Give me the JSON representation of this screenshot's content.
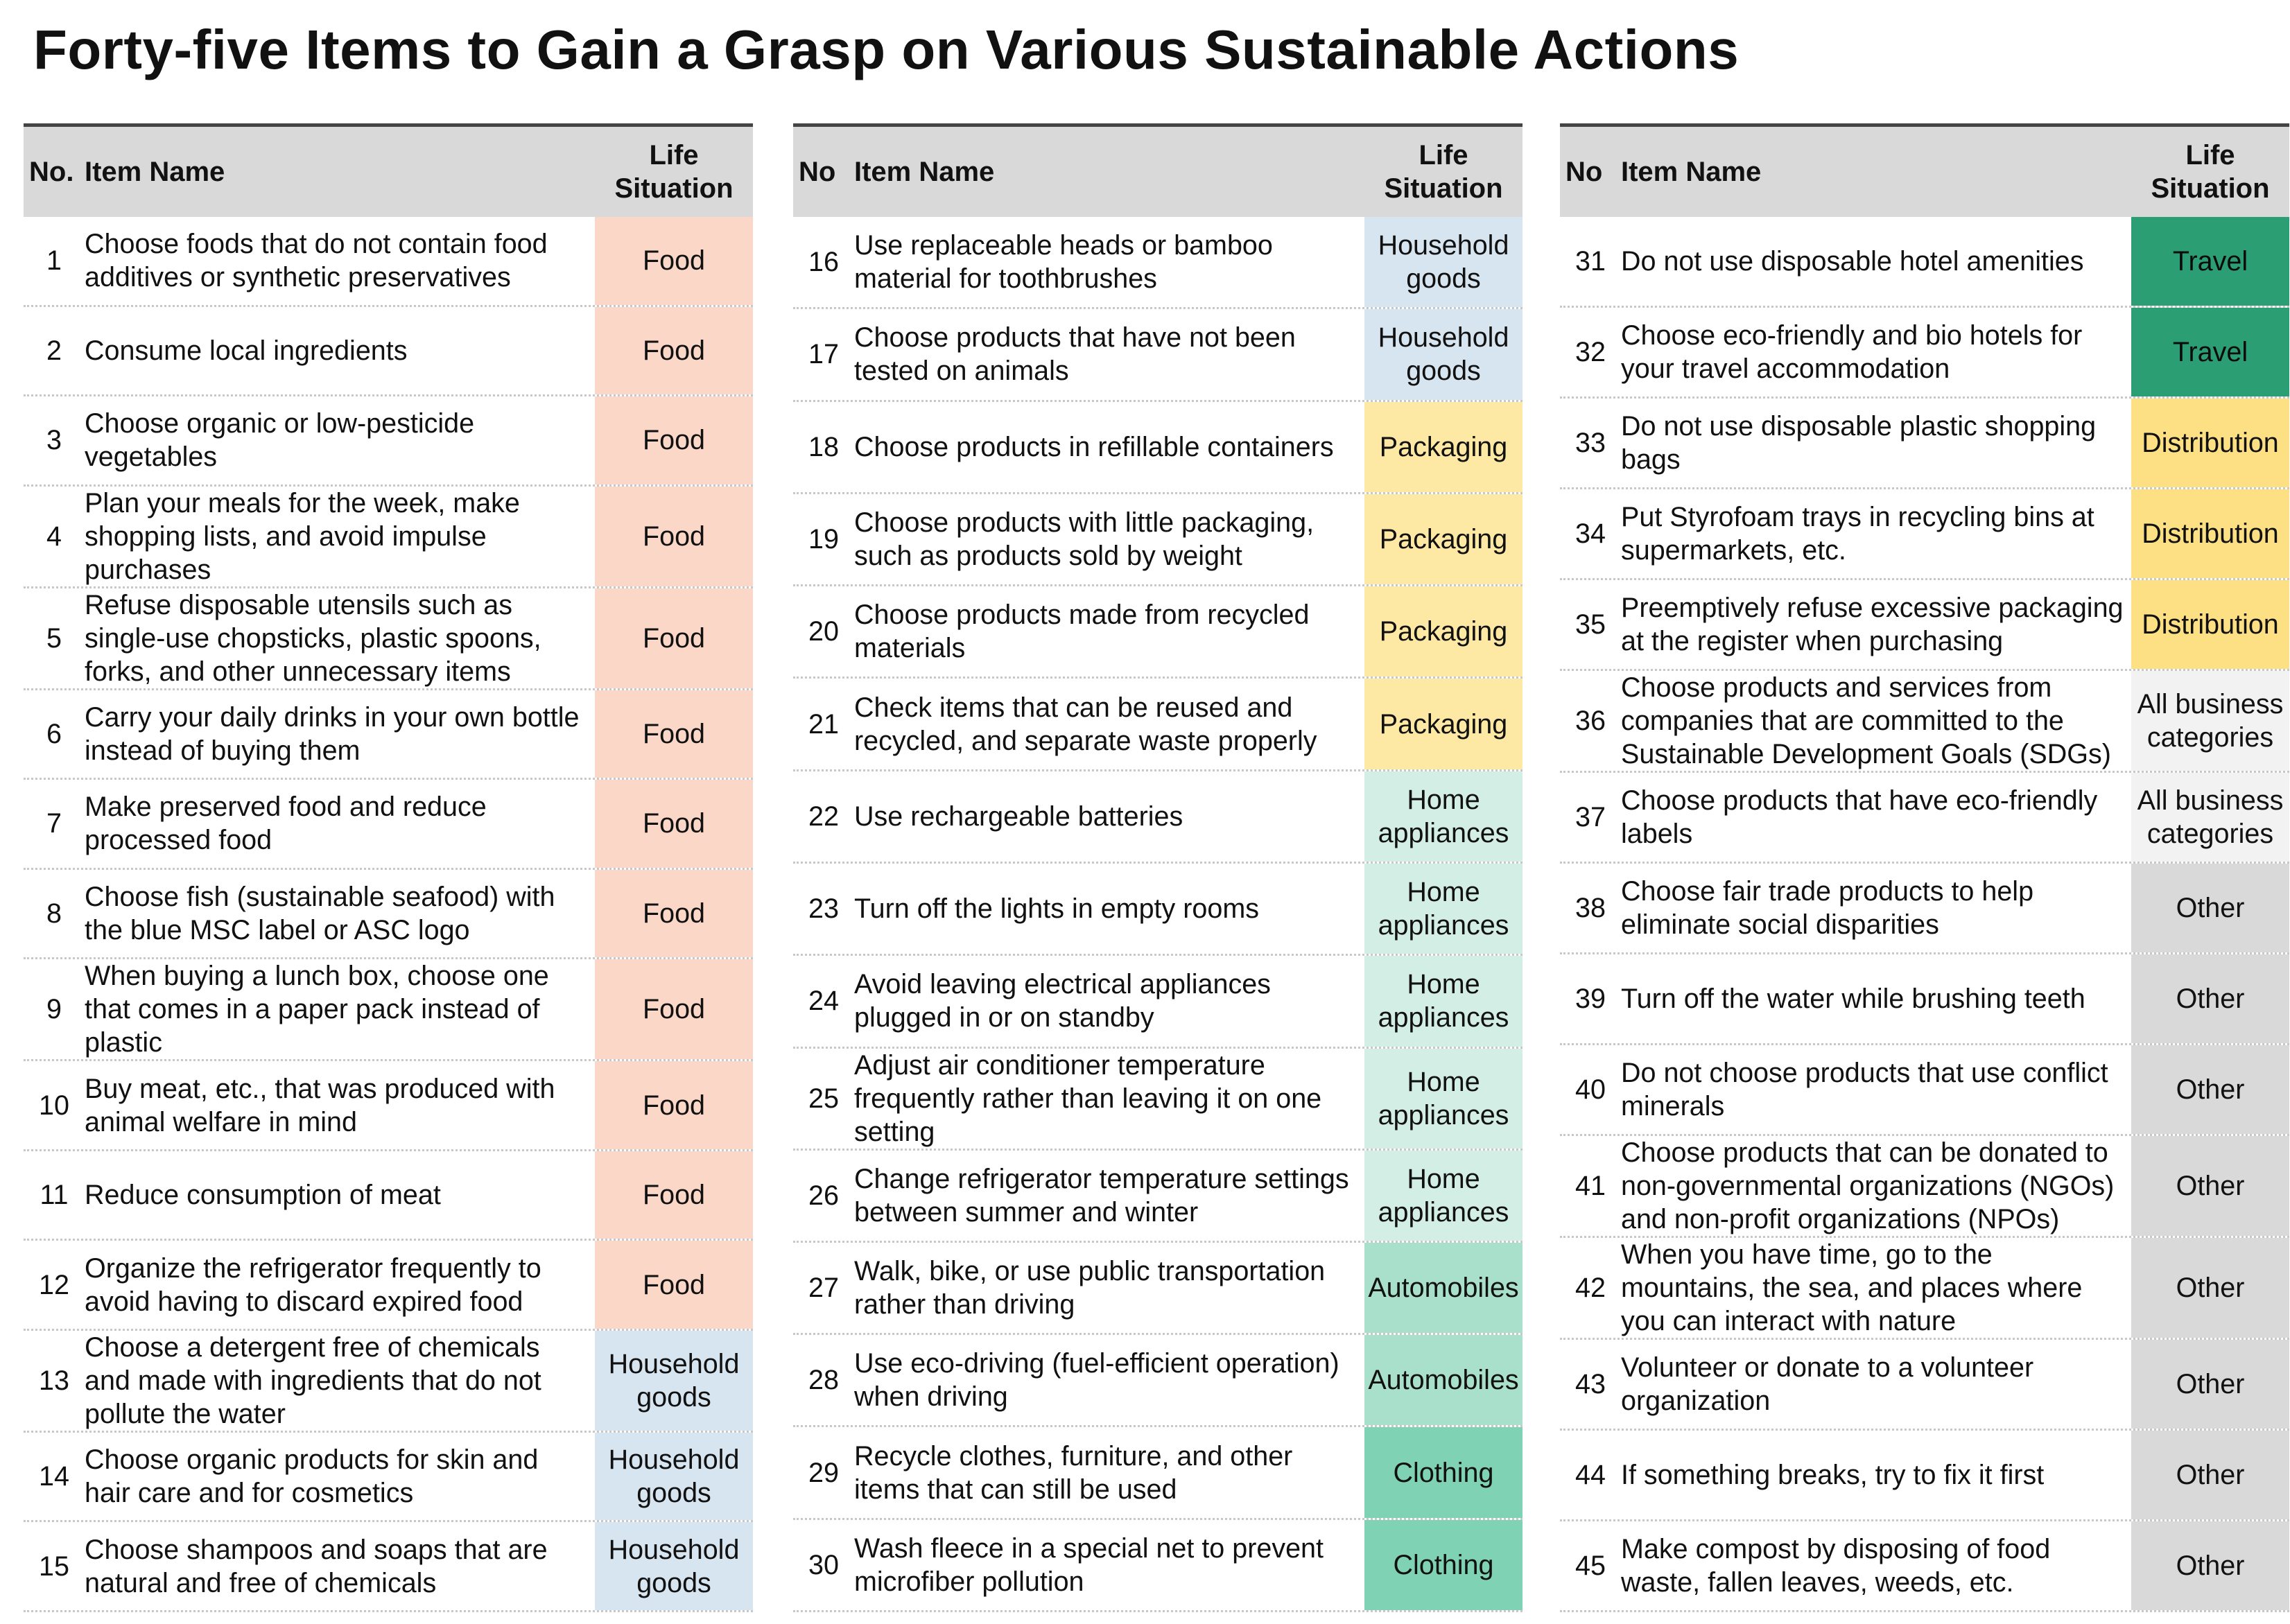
{
  "title": "Forty-five Items to Gain a Grasp on Various Sustainable Actions",
  "category_colors": {
    "Food": "#fad7c6",
    "Household goods": "#d7e5f0",
    "Packaging": "#fde8a4",
    "Home appliances": "#d3efe5",
    "Automobiles": "#a9e0cc",
    "Clothing": "#7fd3b4",
    "Travel": "#2c9e74",
    "Distribution": "#fde083",
    "All business categories": "#f2f2f2",
    "Other": "#d9d9d9"
  },
  "panels": [
    {
      "headers": {
        "no": "No.",
        "item_name": "Item Name",
        "life_situation": "Life Situation"
      },
      "rows": [
        {
          "no": "1",
          "item": "Choose foods that do not contain food additives or synthetic preservatives",
          "situation": "Food"
        },
        {
          "no": "2",
          "item": "Consume local ingredients",
          "situation": "Food"
        },
        {
          "no": "3",
          "item": "Choose organic or low-pesticide vegetables",
          "situation": "Food"
        },
        {
          "no": "4",
          "item": "Plan your meals for the week, make shopping lists, and avoid impulse purchases",
          "situation": "Food"
        },
        {
          "no": "5",
          "item": "Refuse disposable utensils such as single-use chopsticks, plastic spoons, forks, and other unnecessary items",
          "situation": "Food"
        },
        {
          "no": "6",
          "item": "Carry your daily drinks in your own bottle instead of buying them",
          "situation": "Food"
        },
        {
          "no": "7",
          "item": "Make preserved food and reduce processed food",
          "situation": "Food"
        },
        {
          "no": "8",
          "item": "Choose fish (sustainable seafood) with the blue MSC label or ASC logo",
          "situation": "Food"
        },
        {
          "no": "9",
          "item": "When buying a lunch box, choose one that comes in a paper pack instead of plastic",
          "situation": "Food"
        },
        {
          "no": "10",
          "item": "Buy meat, etc., that was produced with animal welfare in mind",
          "situation": "Food"
        },
        {
          "no": "11",
          "item": "Reduce consumption of meat",
          "situation": "Food"
        },
        {
          "no": "12",
          "item": "Organize the refrigerator frequently to avoid having to discard expired food",
          "situation": "Food"
        },
        {
          "no": "13",
          "item": "Choose a detergent free of chemicals and made with ingredients that do not pollute the water",
          "situation": "Household goods"
        },
        {
          "no": "14",
          "item": "Choose organic products for skin and hair care and for cosmetics",
          "situation": "Household goods"
        },
        {
          "no": "15",
          "item": "Choose shampoos and soaps that are natural and free of chemicals",
          "situation": "Household goods"
        }
      ]
    },
    {
      "headers": {
        "no": "No",
        "item_name": "Item Name",
        "life_situation": "Life Situation"
      },
      "rows": [
        {
          "no": "16",
          "item": "Use replaceable heads or bamboo material for toothbrushes",
          "situation": "Household goods"
        },
        {
          "no": "17",
          "item": "Choose products that have not been tested on animals",
          "situation": "Household goods"
        },
        {
          "no": "18",
          "item": "Choose products in refillable containers",
          "situation": "Packaging"
        },
        {
          "no": "19",
          "item": "Choose products with little packaging, such as products sold by weight",
          "situation": "Packaging"
        },
        {
          "no": "20",
          "item": "Choose products made from recycled materials",
          "situation": "Packaging"
        },
        {
          "no": "21",
          "item": "Check items that can be reused and recycled, and separate waste properly",
          "situation": "Packaging"
        },
        {
          "no": "22",
          "item": "Use rechargeable batteries",
          "situation": "Home appliances"
        },
        {
          "no": "23",
          "item": "Turn off the lights in empty rooms",
          "situation": "Home appliances"
        },
        {
          "no": "24",
          "item": "Avoid leaving electrical appliances plugged in or on standby",
          "situation": "Home appliances"
        },
        {
          "no": "25",
          "item": "Adjust air conditioner temperature frequently rather than leaving it on one setting",
          "situation": "Home appliances"
        },
        {
          "no": "26",
          "item": "Change refrigerator temperature settings between summer and winter",
          "situation": "Home appliances"
        },
        {
          "no": "27",
          "item": "Walk, bike, or use public transportation rather than driving",
          "situation": "Automobiles"
        },
        {
          "no": "28",
          "item": "Use eco-driving (fuel-efficient operation) when driving",
          "situation": "Automobiles"
        },
        {
          "no": "29",
          "item": "Recycle clothes, furniture, and other items that can still be used",
          "situation": "Clothing"
        },
        {
          "no": "30",
          "item": "Wash fleece in a special net to prevent microfiber pollution",
          "situation": "Clothing"
        }
      ]
    },
    {
      "headers": {
        "no": "No",
        "item_name": "Item Name",
        "life_situation": "Life Situation"
      },
      "rows": [
        {
          "no": "31",
          "item": "Do not use disposable hotel amenities",
          "situation": "Travel"
        },
        {
          "no": "32",
          "item": "Choose eco-friendly and bio hotels for your travel accommodation",
          "situation": "Travel"
        },
        {
          "no": "33",
          "item": "Do not use disposable plastic shopping bags",
          "situation": "Distribution"
        },
        {
          "no": "34",
          "item": "Put Styrofoam trays in recycling bins at supermarkets, etc.",
          "situation": "Distribution"
        },
        {
          "no": "35",
          "item": "Preemptively refuse excessive packaging at the register when purchasing",
          "situation": "Distribution"
        },
        {
          "no": "36",
          "item": "Choose products and services from companies that are committed to the Sustainable Development Goals (SDGs)",
          "situation": "All business categories"
        },
        {
          "no": "37",
          "item": "Choose products that have eco-friendly labels",
          "situation": "All business categories"
        },
        {
          "no": "38",
          "item": "Choose fair trade products to help eliminate social disparities",
          "situation": "Other"
        },
        {
          "no": "39",
          "item": "Turn off the water while brushing teeth",
          "situation": "Other"
        },
        {
          "no": "40",
          "item": "Do not choose products that use conflict minerals",
          "situation": "Other"
        },
        {
          "no": "41",
          "item": "Choose products that can be donated to non-governmental organizations (NGOs) and non-profit organizations (NPOs)",
          "situation": "Other"
        },
        {
          "no": "42",
          "item": "When you have time, go to the mountains, the sea, and places where you can interact with nature",
          "situation": "Other"
        },
        {
          "no": "43",
          "item": "Volunteer or donate to a volunteer organization",
          "situation": "Other"
        },
        {
          "no": "44",
          "item": "If something breaks, try to fix it first",
          "situation": "Other"
        },
        {
          "no": "45",
          "item": "Make compost by disposing of food waste, fallen leaves, weeds, etc.",
          "situation": "Other"
        }
      ]
    }
  ]
}
